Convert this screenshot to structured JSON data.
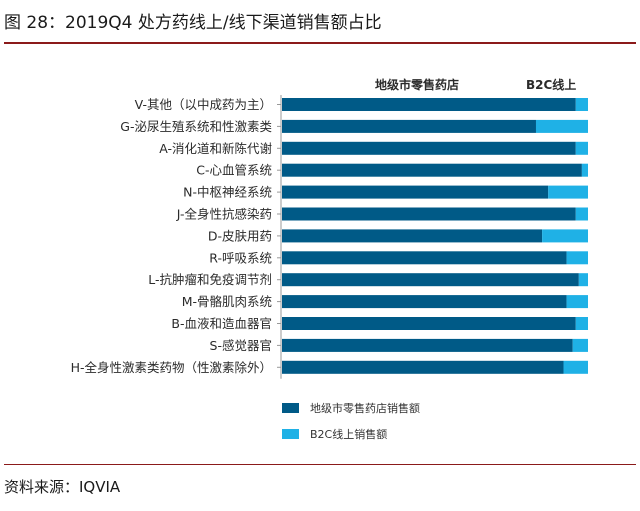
{
  "title": "图 28：2019Q4 处方药线上/线下渠道销售额占比",
  "source": "资料来源：IQVIA",
  "colors": {
    "offline": "#005a87",
    "online": "#1fb1e6",
    "accent": "#8b1a1a"
  },
  "chart_data": {
    "type": "bar",
    "orientation": "horizontal",
    "stacked": true,
    "normalized": true,
    "column_headers": [
      "地级市零售药店",
      "B2C线上"
    ],
    "categories": [
      "V-其他（以中成药为主）",
      "G-泌尿生殖系统和性激素类",
      "A-消化道和新陈代谢",
      "C-心血管系统",
      "N-中枢神经系统",
      "J-全身性抗感染药",
      "D-皮肤用药",
      "R-呼吸系统",
      "L-抗肿瘤和免疫调节剂",
      "M-骨骼肌肉系统",
      "B-血液和造血器官",
      "S-感觉器官",
      "H-全身性激素类药物（性激素除外）"
    ],
    "series": [
      {
        "name": "地级市零售药店销售额",
        "values": [
          0.96,
          0.83,
          0.96,
          0.98,
          0.87,
          0.96,
          0.85,
          0.93,
          0.97,
          0.93,
          0.96,
          0.95,
          0.92
        ]
      },
      {
        "name": "B2C线上销售额",
        "values": [
          0.04,
          0.17,
          0.04,
          0.02,
          0.13,
          0.04,
          0.15,
          0.07,
          0.03,
          0.07,
          0.04,
          0.05,
          0.08
        ]
      }
    ],
    "xlim": [
      0,
      1
    ],
    "grid": false,
    "legend": "bottom-left"
  }
}
